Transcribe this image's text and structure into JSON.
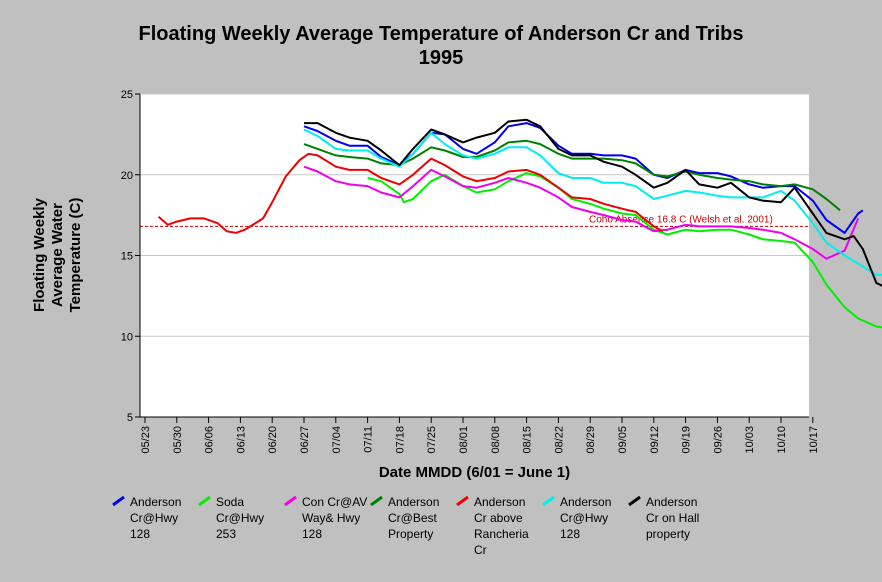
{
  "chart_data": {
    "type": "line",
    "title_lines": [
      "Floating Weekly Average Temperature of Anderson Cr and Tribs",
      "1995"
    ],
    "xlabel": "Date MMDD (6/01 = June 1)",
    "ylabel_lines": [
      "Floating Weekly",
      "Average Water",
      "Temperature (C)"
    ],
    "x_ticks": [
      "05/23",
      "05/30",
      "06/06",
      "06/13",
      "06/20",
      "06/27",
      "07/04",
      "07/11",
      "07/18",
      "07/25",
      "08/01",
      "08/08",
      "08/15",
      "08/22",
      "08/29",
      "09/05",
      "09/12",
      "09/19",
      "09/26",
      "10/03",
      "10/10",
      "10/17"
    ],
    "ylim": [
      5,
      25
    ],
    "y_ticks": [
      5,
      10,
      15,
      20,
      25
    ],
    "grid": "horizontal",
    "reference_line": {
      "value": 16.8,
      "label": "Coho Absence 16.8 C (Welsh et al. 2001)",
      "color": "#cc0000"
    },
    "legend_position": "bottom",
    "series": [
      {
        "name": "Anderson Cr@Hwy 128",
        "legend_lines": [
          "Anderson",
          "Cr@Hwy",
          "128"
        ],
        "color": "#0000ee",
        "points": [
          [
            35,
            23.0
          ],
          [
            38,
            22.7
          ],
          [
            42,
            22.1
          ],
          [
            45,
            21.8
          ],
          [
            49,
            21.8
          ],
          [
            52,
            21.1
          ],
          [
            56,
            20.6
          ],
          [
            59,
            21.3
          ],
          [
            63,
            22.6
          ],
          [
            66,
            22.5
          ],
          [
            70,
            21.6
          ],
          [
            73,
            21.3
          ],
          [
            77,
            22.0
          ],
          [
            80,
            23.0
          ],
          [
            84,
            23.2
          ],
          [
            87,
            22.9
          ],
          [
            91,
            21.8
          ],
          [
            94,
            21.3
          ],
          [
            98,
            21.3
          ],
          [
            101,
            21.2
          ],
          [
            105,
            21.2
          ],
          [
            108,
            21.0
          ],
          [
            112,
            20.0
          ],
          [
            115,
            19.8
          ],
          [
            119,
            20.3
          ],
          [
            122,
            20.1
          ],
          [
            126,
            20.1
          ],
          [
            129,
            19.9
          ],
          [
            133,
            19.4
          ],
          [
            136,
            19.2
          ],
          [
            140,
            19.3
          ],
          [
            143,
            19.3
          ],
          [
            147,
            18.4
          ],
          [
            150,
            17.2
          ],
          [
            154,
            16.4
          ],
          [
            157,
            17.6
          ],
          [
            158,
            17.8
          ]
        ]
      },
      {
        "name": "Soda Cr@Hwy 253",
        "legend_lines": [
          "Soda",
          "Cr@Hwy",
          "253"
        ],
        "color": "#00ee00",
        "points": [
          [
            49,
            19.8
          ],
          [
            52,
            19.6
          ],
          [
            56,
            18.8
          ],
          [
            57,
            18.3
          ],
          [
            59,
            18.5
          ],
          [
            63,
            19.6
          ],
          [
            66,
            20.0
          ],
          [
            70,
            19.3
          ],
          [
            73,
            18.9
          ],
          [
            77,
            19.1
          ],
          [
            80,
            19.6
          ],
          [
            84,
            20.1
          ],
          [
            87,
            19.9
          ],
          [
            91,
            19.2
          ],
          [
            94,
            18.5
          ],
          [
            98,
            18.2
          ],
          [
            101,
            17.9
          ],
          [
            105,
            17.6
          ],
          [
            108,
            17.5
          ],
          [
            112,
            16.6
          ],
          [
            115,
            16.3
          ],
          [
            119,
            16.6
          ],
          [
            122,
            16.5
          ],
          [
            126,
            16.6
          ],
          [
            129,
            16.6
          ],
          [
            133,
            16.3
          ],
          [
            136,
            16.0
          ],
          [
            140,
            15.9
          ],
          [
            143,
            15.8
          ],
          [
            147,
            14.6
          ],
          [
            150,
            13.2
          ],
          [
            154,
            11.8
          ],
          [
            157,
            11.1
          ],
          [
            161,
            10.6
          ],
          [
            164,
            10.5
          ],
          [
            168,
            10.4
          ],
          [
            170,
            10.5
          ]
        ]
      },
      {
        "name": "Con Cr@AV Way& Hwy 128",
        "legend_lines": [
          "Con Cr@AV",
          "Way& Hwy",
          "128"
        ],
        "color": "#ee00ee",
        "points": [
          [
            35,
            20.5
          ],
          [
            38,
            20.2
          ],
          [
            42,
            19.6
          ],
          [
            45,
            19.4
          ],
          [
            49,
            19.3
          ],
          [
            52,
            18.9
          ],
          [
            56,
            18.6
          ],
          [
            59,
            19.3
          ],
          [
            63,
            20.3
          ],
          [
            66,
            19.9
          ],
          [
            70,
            19.3
          ],
          [
            73,
            19.2
          ],
          [
            77,
            19.5
          ],
          [
            80,
            19.8
          ],
          [
            84,
            19.5
          ],
          [
            87,
            19.2
          ],
          [
            91,
            18.6
          ],
          [
            94,
            18.0
          ],
          [
            98,
            17.7
          ],
          [
            101,
            17.5
          ],
          [
            105,
            17.2
          ],
          [
            108,
            17.1
          ],
          [
            112,
            16.5
          ],
          [
            115,
            16.6
          ],
          [
            119,
            16.9
          ],
          [
            122,
            16.8
          ],
          [
            126,
            16.8
          ],
          [
            129,
            16.8
          ],
          [
            133,
            16.7
          ],
          [
            136,
            16.6
          ],
          [
            140,
            16.4
          ],
          [
            143,
            16.0
          ],
          [
            147,
            15.4
          ],
          [
            150,
            14.8
          ],
          [
            154,
            15.3
          ],
          [
            157,
            17.3
          ]
        ]
      },
      {
        "name": "Anderson Cr@Best Property",
        "legend_lines": [
          "Anderson",
          "Cr@Best",
          "Property"
        ],
        "color": "#008000",
        "points": [
          [
            35,
            21.9
          ],
          [
            38,
            21.6
          ],
          [
            42,
            21.2
          ],
          [
            45,
            21.1
          ],
          [
            49,
            21.0
          ],
          [
            52,
            20.7
          ],
          [
            56,
            20.6
          ],
          [
            59,
            21.0
          ],
          [
            63,
            21.7
          ],
          [
            66,
            21.5
          ],
          [
            70,
            21.1
          ],
          [
            73,
            21.1
          ],
          [
            77,
            21.5
          ],
          [
            80,
            22.0
          ],
          [
            84,
            22.1
          ],
          [
            87,
            21.9
          ],
          [
            91,
            21.3
          ],
          [
            94,
            21.0
          ],
          [
            98,
            21.0
          ],
          [
            101,
            21.0
          ],
          [
            105,
            20.9
          ],
          [
            108,
            20.7
          ],
          [
            112,
            20.0
          ],
          [
            115,
            19.9
          ],
          [
            119,
            20.2
          ],
          [
            122,
            20.0
          ],
          [
            126,
            19.8
          ],
          [
            129,
            19.7
          ],
          [
            133,
            19.6
          ],
          [
            136,
            19.4
          ],
          [
            140,
            19.3
          ],
          [
            143,
            19.4
          ],
          [
            147,
            19.1
          ],
          [
            150,
            18.5
          ],
          [
            153,
            17.8
          ]
        ]
      },
      {
        "name": "Anderson Cr above Rancheria Cr",
        "legend_lines": [
          "Anderson",
          "Cr above",
          "Rancheria",
          "Cr"
        ],
        "color": "#ee0000",
        "points": [
          [
            3,
            17.4
          ],
          [
            5,
            16.9
          ],
          [
            7,
            17.1
          ],
          [
            10,
            17.3
          ],
          [
            13,
            17.3
          ],
          [
            16,
            17.0
          ],
          [
            18,
            16.5
          ],
          [
            20,
            16.4
          ],
          [
            22,
            16.6
          ],
          [
            26,
            17.3
          ],
          [
            28,
            18.3
          ],
          [
            31,
            19.9
          ],
          [
            34,
            20.9
          ],
          [
            36,
            21.3
          ],
          [
            38,
            21.2
          ],
          [
            42,
            20.5
          ],
          [
            45,
            20.3
          ],
          [
            49,
            20.3
          ],
          [
            52,
            19.8
          ],
          [
            56,
            19.4
          ],
          [
            59,
            20.0
          ],
          [
            63,
            21.0
          ],
          [
            66,
            20.6
          ],
          [
            70,
            19.9
          ],
          [
            73,
            19.6
          ],
          [
            77,
            19.8
          ],
          [
            80,
            20.2
          ],
          [
            84,
            20.3
          ],
          [
            87,
            20.0
          ],
          [
            91,
            19.2
          ],
          [
            94,
            18.6
          ],
          [
            98,
            18.5
          ],
          [
            101,
            18.2
          ],
          [
            105,
            17.9
          ],
          [
            108,
            17.7
          ],
          [
            112,
            16.8
          ],
          [
            114,
            16.5
          ]
        ]
      },
      {
        "name": "Anderson Cr@Hwy 128",
        "legend_lines": [
          "Anderson",
          "Cr@Hwy",
          "128"
        ],
        "color": "#00eeee",
        "points": [
          [
            35,
            22.8
          ],
          [
            38,
            22.4
          ],
          [
            42,
            21.6
          ],
          [
            45,
            21.5
          ],
          [
            49,
            21.5
          ],
          [
            52,
            21.0
          ],
          [
            56,
            20.5
          ],
          [
            59,
            21.3
          ],
          [
            63,
            22.6
          ],
          [
            66,
            21.9
          ],
          [
            70,
            21.2
          ],
          [
            73,
            21.0
          ],
          [
            77,
            21.3
          ],
          [
            80,
            21.7
          ],
          [
            84,
            21.7
          ],
          [
            87,
            21.2
          ],
          [
            91,
            20.1
          ],
          [
            94,
            19.8
          ],
          [
            98,
            19.8
          ],
          [
            101,
            19.5
          ],
          [
            105,
            19.5
          ],
          [
            108,
            19.3
          ],
          [
            112,
            18.5
          ],
          [
            115,
            18.7
          ],
          [
            119,
            19.0
          ],
          [
            122,
            18.9
          ],
          [
            126,
            18.7
          ],
          [
            129,
            18.6
          ],
          [
            133,
            18.6
          ],
          [
            136,
            18.6
          ],
          [
            140,
            19.0
          ],
          [
            143,
            18.4
          ],
          [
            147,
            17.0
          ],
          [
            150,
            15.8
          ],
          [
            154,
            15.0
          ],
          [
            157,
            14.5
          ],
          [
            161,
            13.8
          ],
          [
            164,
            13.8
          ],
          [
            166,
            14.2
          ],
          [
            168,
            15.0
          ],
          [
            170,
            15.7
          ]
        ]
      },
      {
        "name": "Anderson Cr on Hall property",
        "legend_lines": [
          "Anderson",
          "Cr on Hall",
          "property"
        ],
        "color": "#000000",
        "points": [
          [
            35,
            23.2
          ],
          [
            38,
            23.2
          ],
          [
            42,
            22.6
          ],
          [
            45,
            22.3
          ],
          [
            49,
            22.1
          ],
          [
            52,
            21.5
          ],
          [
            56,
            20.6
          ],
          [
            59,
            21.6
          ],
          [
            63,
            22.8
          ],
          [
            66,
            22.5
          ],
          [
            70,
            22.0
          ],
          [
            73,
            22.3
          ],
          [
            77,
            22.6
          ],
          [
            80,
            23.3
          ],
          [
            84,
            23.4
          ],
          [
            87,
            23.0
          ],
          [
            91,
            21.6
          ],
          [
            94,
            21.2
          ],
          [
            98,
            21.2
          ],
          [
            101,
            20.8
          ],
          [
            105,
            20.5
          ],
          [
            108,
            20.0
          ],
          [
            112,
            19.2
          ],
          [
            115,
            19.5
          ],
          [
            119,
            20.3
          ],
          [
            122,
            19.4
          ],
          [
            126,
            19.2
          ],
          [
            129,
            19.5
          ],
          [
            133,
            18.6
          ],
          [
            136,
            18.4
          ],
          [
            140,
            18.3
          ],
          [
            143,
            19.2
          ],
          [
            147,
            17.6
          ],
          [
            150,
            16.4
          ],
          [
            154,
            16.0
          ],
          [
            156,
            16.2
          ],
          [
            158,
            15.4
          ],
          [
            161,
            13.3
          ],
          [
            164,
            12.9
          ],
          [
            167,
            13.1
          ],
          [
            170,
            14.1
          ],
          [
            171,
            14.3
          ]
        ]
      }
    ]
  }
}
